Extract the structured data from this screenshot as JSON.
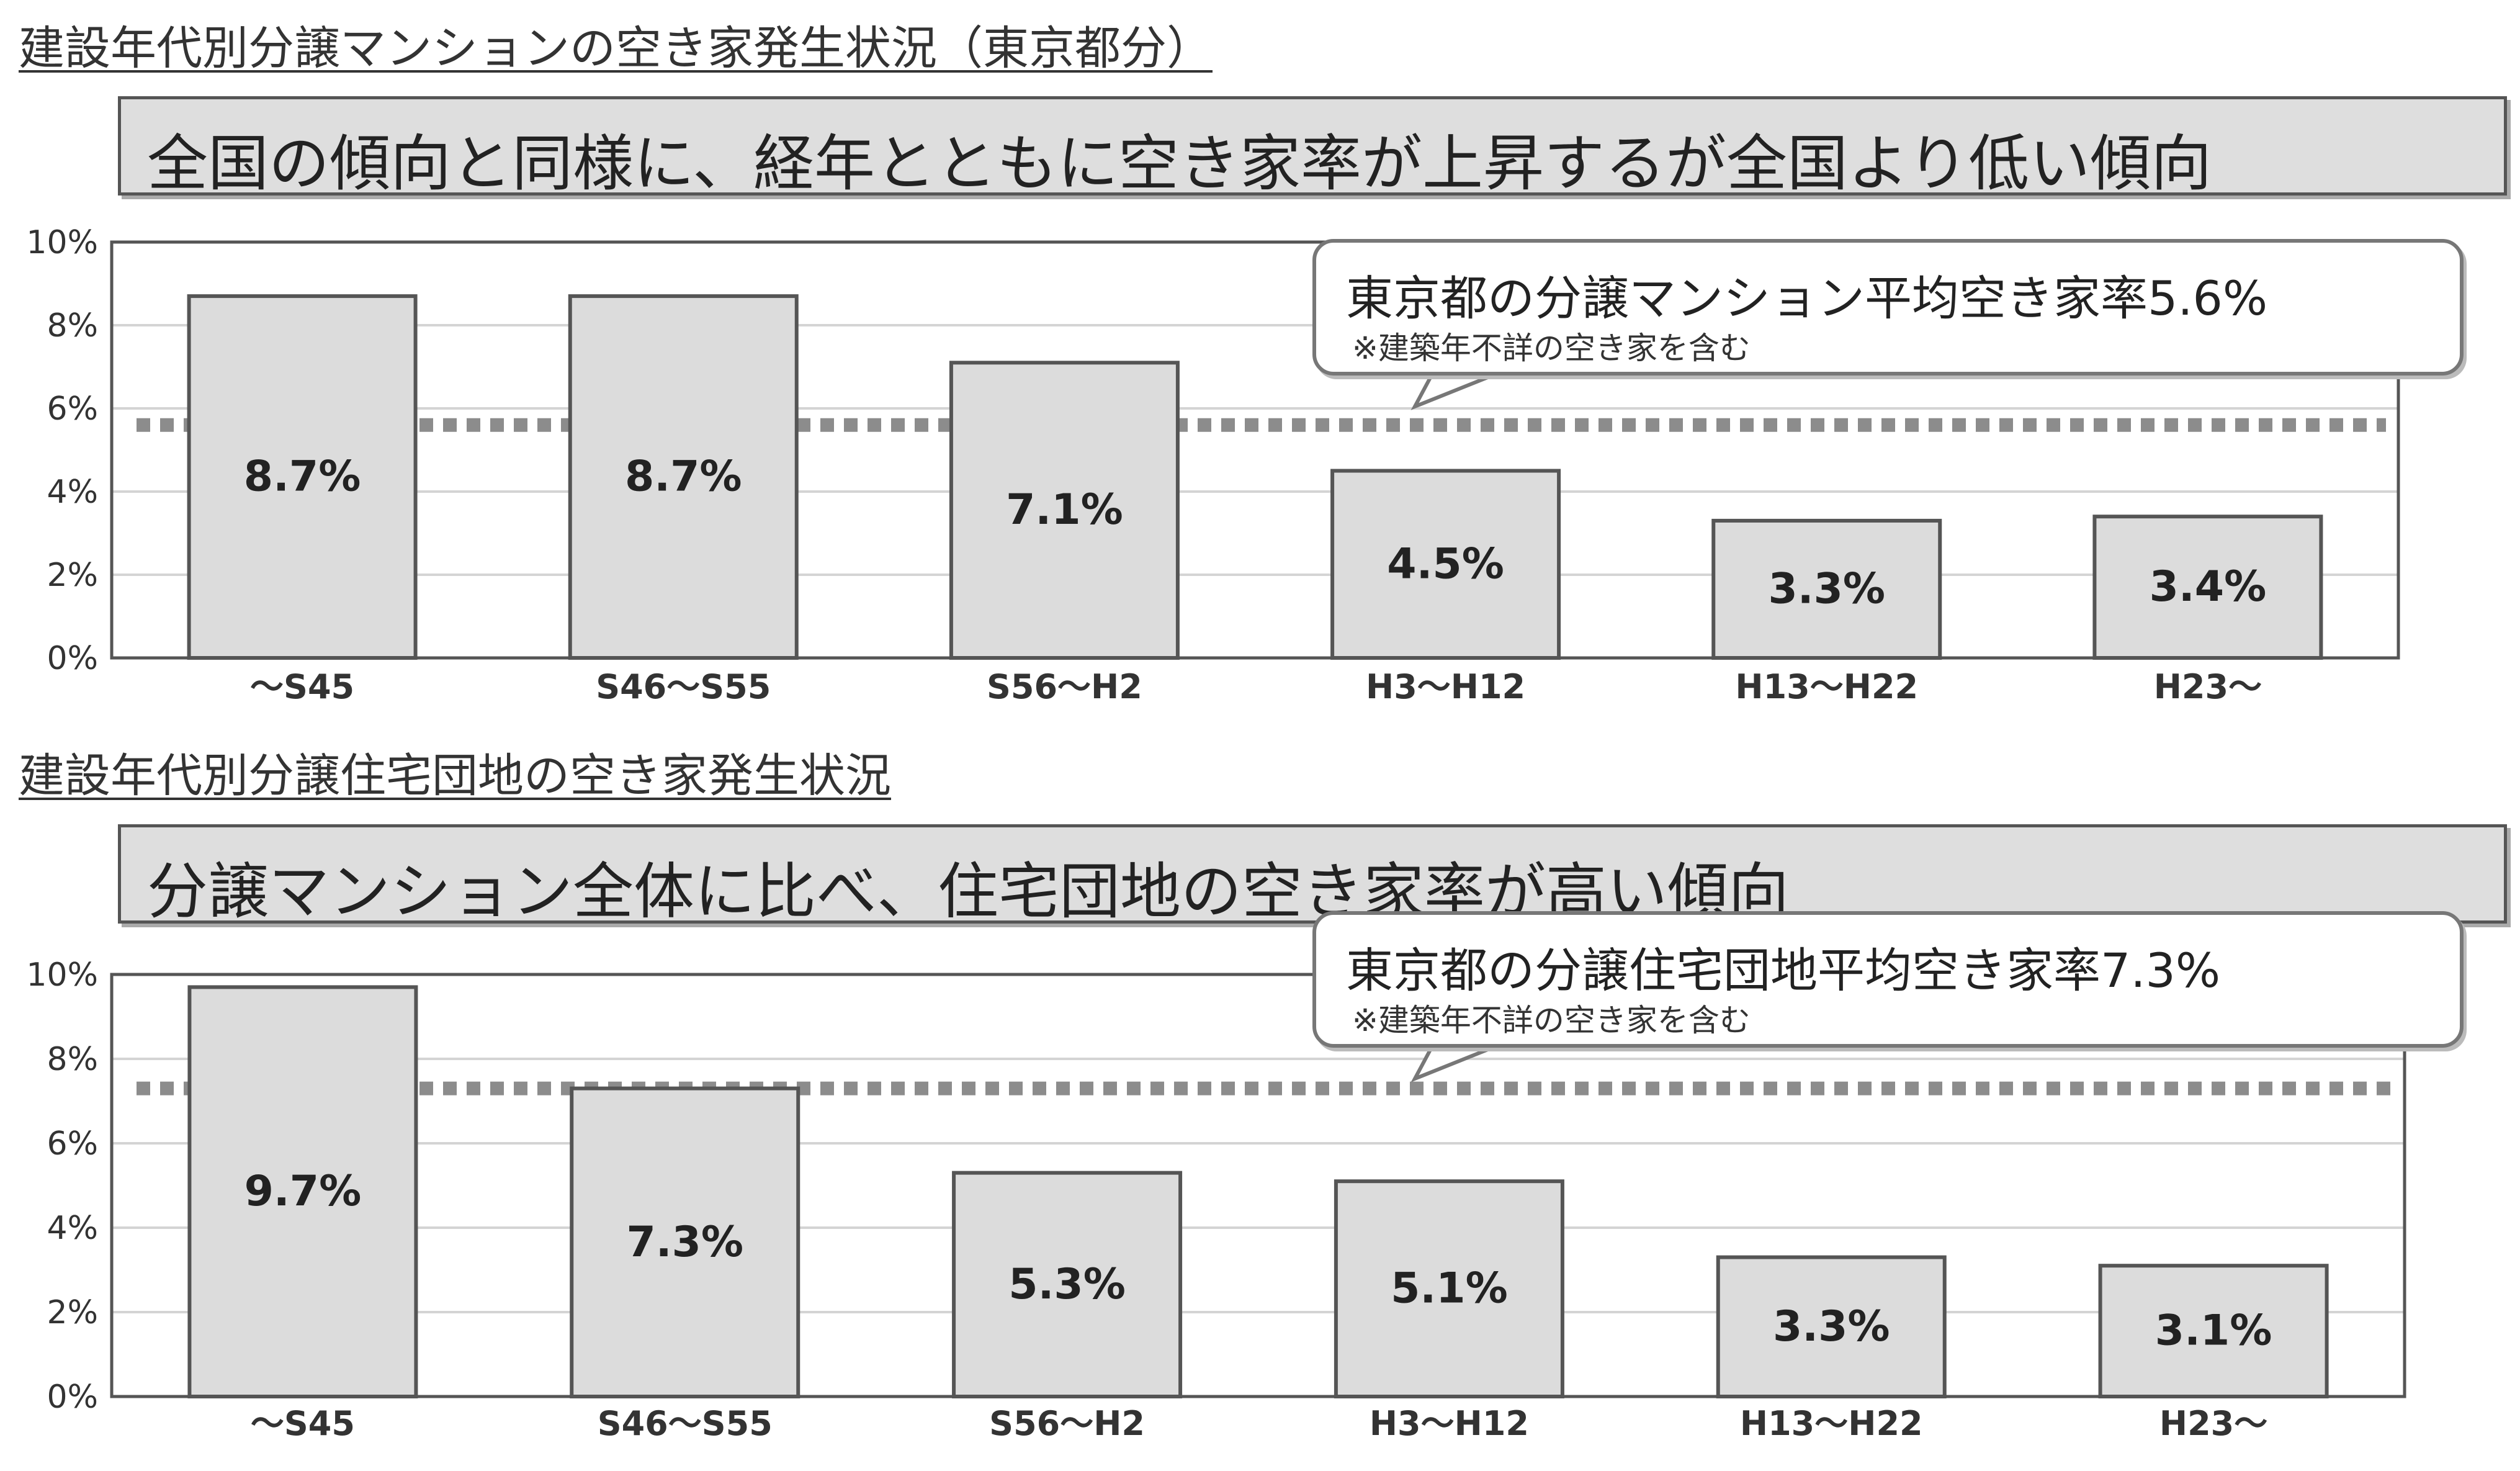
{
  "chart_data": [
    {
      "type": "bar",
      "title": "建設年代別分譲マンションの空き家発生状況（東京都分）",
      "subtitle": "全国の傾向と同様に、経年とともに空き家率が上昇するが全国より低い傾向",
      "categories": [
        "～S45",
        "S46～S55",
        "S56～H2",
        "H3～H12",
        "H13～H22",
        "H23～"
      ],
      "values": [
        8.7,
        8.7,
        7.1,
        4.5,
        3.3,
        3.4
      ],
      "value_labels": [
        "8.7%",
        "8.7%",
        "7.1%",
        "4.5%",
        "3.3%",
        "3.4%"
      ],
      "ylim": [
        0,
        10
      ],
      "yticks": [
        "0%",
        "2%",
        "4%",
        "6%",
        "8%",
        "10%"
      ],
      "reference_line": {
        "value": 5.6,
        "label": "東京都の分譲マンション平均空き家率5.6%",
        "note": "※建築年不詳の空き家を含む"
      },
      "grid": true,
      "bar_color": "#dcdcdc",
      "line_color": "#8c8c8c"
    },
    {
      "type": "bar",
      "title": "建設年代別分譲住宅団地の空き家発生状況",
      "subtitle": "分譲マンション全体に比べ、住宅団地の空き家率が高い傾向",
      "categories": [
        "～S45",
        "S46～S55",
        "S56～H2",
        "H3～H12",
        "H13～H22",
        "H23～"
      ],
      "values": [
        9.7,
        7.3,
        5.3,
        5.1,
        3.3,
        3.1
      ],
      "value_labels": [
        "9.7%",
        "7.3%",
        "5.3%",
        "5.1%",
        "3.3%",
        "3.1%"
      ],
      "ylim": [
        0,
        10
      ],
      "yticks": [
        "0%",
        "2%",
        "4%",
        "6%",
        "8%",
        "10%"
      ],
      "reference_line": {
        "value": 7.3,
        "label": "東京都の分譲住宅団地平均空き家率7.3%",
        "note": "※建築年不詳の空き家を含む"
      },
      "grid": true,
      "bar_color": "#dcdcdc",
      "line_color": "#8c8c8c"
    }
  ]
}
